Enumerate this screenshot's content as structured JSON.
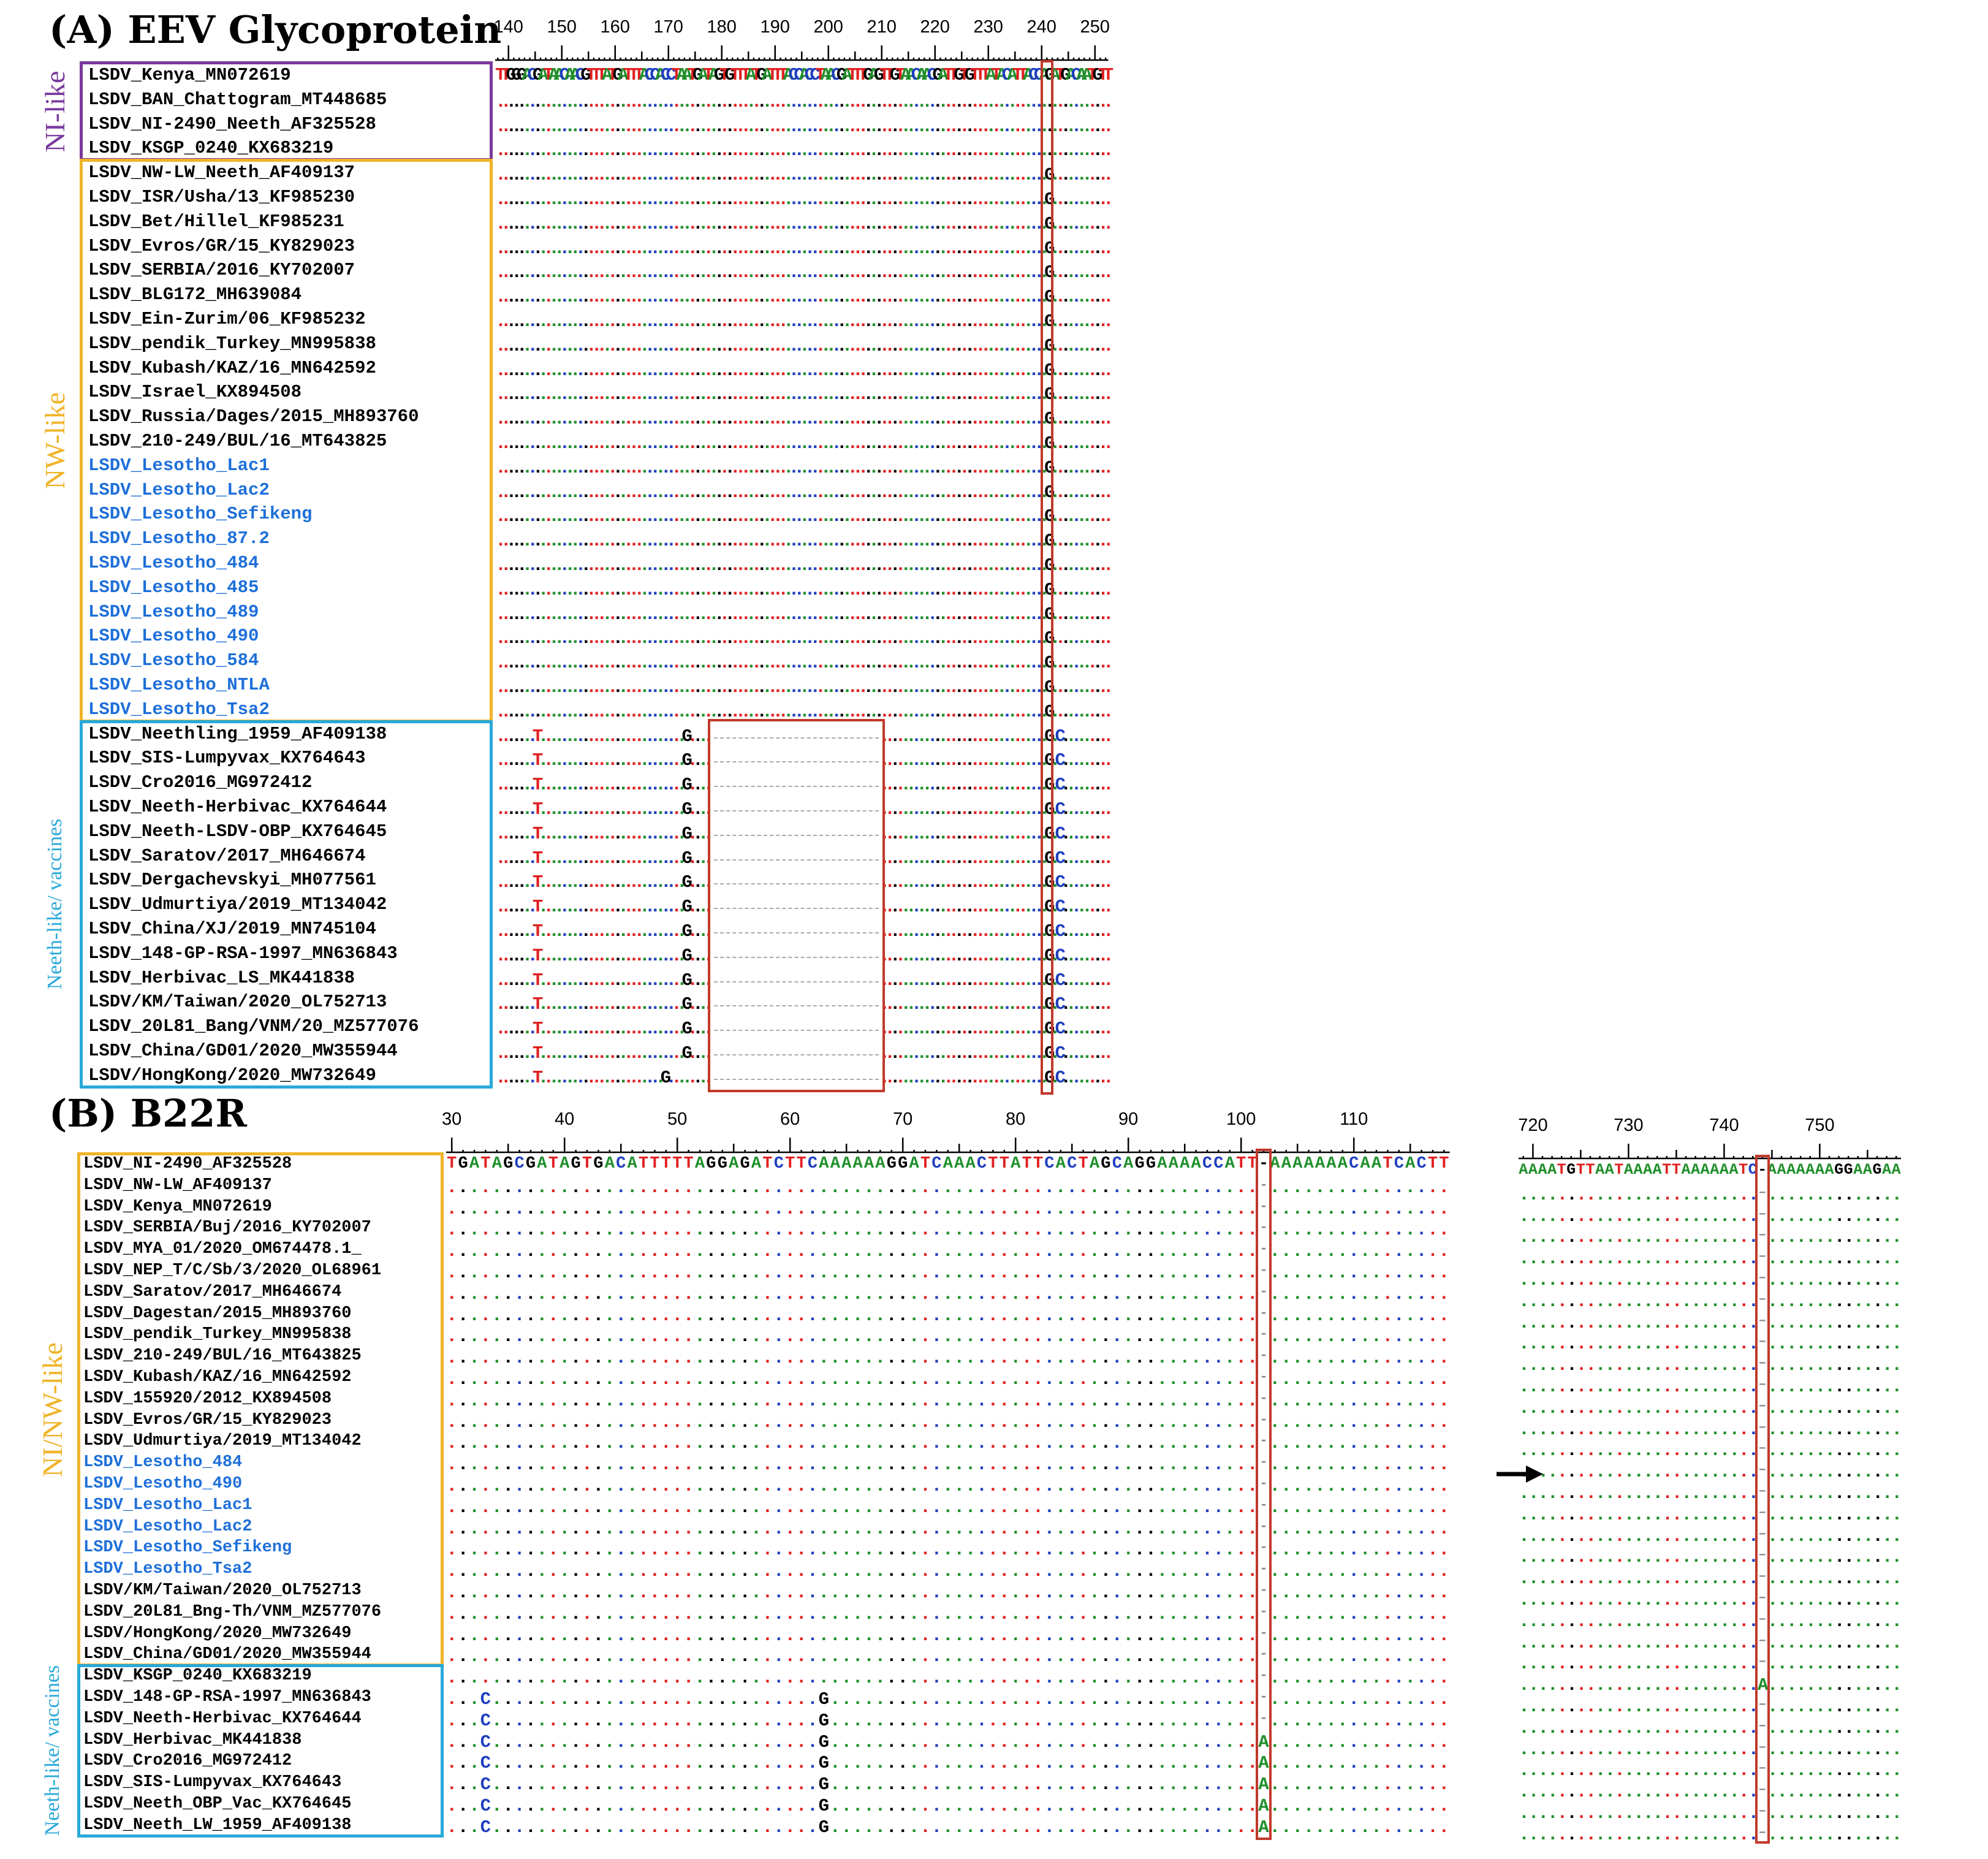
{
  "colors": {
    "A": "#1f8f2a",
    "C": "#1f3fbf",
    "G": "#000000",
    "T": "#e02020",
    "name": "#000000",
    "lesotho": "#1e6fd9",
    "ni_box": "#7a3a9c",
    "nw_box": "#f0b429",
    "neeth_box": "#29a9d9",
    "highlight": "#c0392b"
  },
  "panel_a": {
    "title": "(A) EEV Glycoprotein",
    "ruler_numbers": [
      "140",
      "150",
      "160",
      "170",
      "180",
      "190",
      "200",
      "210",
      "220",
      "230",
      "240",
      "250"
    ],
    "reference_sequence": "TTGGGACGATAACAACGTTTATGATTTACCACCTAATGATAGTGTTTATGATTTACCACCTAACGATTTGAGTTGTAACAACGATTGTGTTTATACATTACCAGATGACAATGTT",
    "groups": [
      {
        "label": "NI-like",
        "color": "ni_box",
        "names": [
          "LSDV_Kenya_MN072619",
          "LSDV_BAN_Chattogram_MT448685",
          "LSDV_NI-2490_Neeth_AF325528",
          "LSDV_KSGP_0240_KX683219"
        ]
      },
      {
        "label": "NW-like",
        "color": "nw_box",
        "names": [
          "LSDV_NW-LW_Neeth_AF409137",
          "LSDV_ISR/Usha/13_KF985230",
          "LSDV_Bet/Hillel_KF985231",
          "LSDV_Evros/GR/15_KY829023",
          "LSDV_SERBIA/2016_KY702007",
          "LSDV_BLG172_MH639084",
          "LSDV_Ein-Zurim/06_KF985232",
          "LSDV_pendik_Turkey_MN995838",
          "LSDV_Kubash/KAZ/16_MN642592",
          "LSDV_Israel_KX894508",
          "LSDV_Russia/Dages/2015_MH893760",
          "LSDV_210-249/BUL/16_MT643825",
          "LSDV_Lesotho_Lac1",
          "LSDV_Lesotho_Lac2",
          "LSDV_Lesotho_Sefikeng",
          "LSDV_Lesotho_87.2",
          "LSDV_Lesotho_484",
          "LSDV_Lesotho_485",
          "LSDV_Lesotho_489",
          "LSDV_Lesotho_490",
          "LSDV_Lesotho_584",
          "LSDV_Lesotho_NTLA",
          "LSDV_Lesotho_Tsa2"
        ]
      },
      {
        "label": "Neeth-like/ vaccines",
        "color": "neeth_box",
        "names": [
          "LSDV_Neethling_1959_AF409138",
          "LSDV_SIS-Lumpyvax_KX764643",
          "LSDV_Cro2016_MG972412",
          "LSDV_Neeth-Herbivac_KX764644",
          "LSDV_Neeth-LSDV-OBP_KX764645",
          "LSDV_Saratov/2017_MH646674",
          "LSDV_Dergachevskyi_MH077561",
          "LSDV_Udmurtiya/2019_MT134042",
          "LSDV_China/XJ/2019_MN745104",
          "LSDV_148-GP-RSA-1997_MN636843",
          "LSDV_Herbivac_LS_MK441838",
          "LSDV/KM/Taiwan/2020_OL752713",
          "LSDV_20L81_Bang/VNM/20_MZ577076",
          "LSDV_China/GD01/2020_MW355944",
          "LSDV/HongKong/2020_MW732649"
        ]
      }
    ]
  },
  "panel_b": {
    "title": "(B) B22R",
    "ruler_numbers": [
      "30",
      "40",
      "50",
      "60",
      "70",
      "80",
      "90",
      "100",
      "110"
    ],
    "ruler_numbers_right": [
      "720",
      "730",
      "740",
      "750"
    ],
    "reference_sequence": "TGATAGCGATAGTGACATTTTTAGGAGATCTTCAAAAAAGGATCAAACTTATTCACTAGCAGGAAAACCATT-AAAAAAACAATCACTT",
    "reference_sequence_right": "AAAATGTTAATAAAATTAAAAAATC-AAAAAAAGGAAGAA",
    "groups": [
      {
        "label": "NI/NW-like",
        "color": "nw_box",
        "names": [
          "LSDV_NI-2490_AF325528",
          "LSDV_NW-LW_AF409137",
          "LSDV_Kenya_MN072619",
          "LSDV_SERBIA/Buj/2016_KY702007",
          "LSDV_MYA_01/2020_OM674478.1_",
          "LSDV_NEP_T/C/Sb/3/2020_OL68961",
          "LSDV_Saratov/2017_MH646674",
          "LSDV_Dagestan/2015_MH893760",
          "LSDV_pendik_Turkey_MN995838",
          "LSDV_210-249/BUL/16_MT643825",
          "LSDV_Kubash/KAZ/16_MN642592",
          "LSDV_155920/2012_KX894508",
          "LSDV_Evros/GR/15_KY829023",
          "LSDV_Udmurtiya/2019_MT134042",
          "LSDV_Lesotho_484",
          "LSDV_Lesotho_490",
          "LSDV_Lesotho_Lac1",
          "LSDV_Lesotho_Lac2",
          "LSDV_Lesotho_Sefikeng",
          "LSDV_Lesotho_Tsa2",
          "LSDV/KM/Taiwan/2020_OL752713",
          "LSDV_20L81_Bng-Th/VNM_MZ577076",
          "LSDV/HongKong/2020_MW732649",
          "LSDV_China/GD01/2020_MW355944"
        ]
      },
      {
        "label": "Neeth-like/ vaccines",
        "color": "neeth_box",
        "names": [
          "LSDV_KSGP_0240_KX683219",
          "LSDV_148-GP-RSA-1997_MN636843",
          "LSDV_Neeth-Herbivac_KX764644",
          "LSDV_Herbivac_MK441838",
          "LSDV_Cro2016_MG972412",
          "LSDV_SIS-Lumpyvax_KX764643",
          "LSDV_Neeth_OBP_Vac_KX764645",
          "LSDV_Neeth_LW_1959_AF409138"
        ]
      }
    ]
  }
}
